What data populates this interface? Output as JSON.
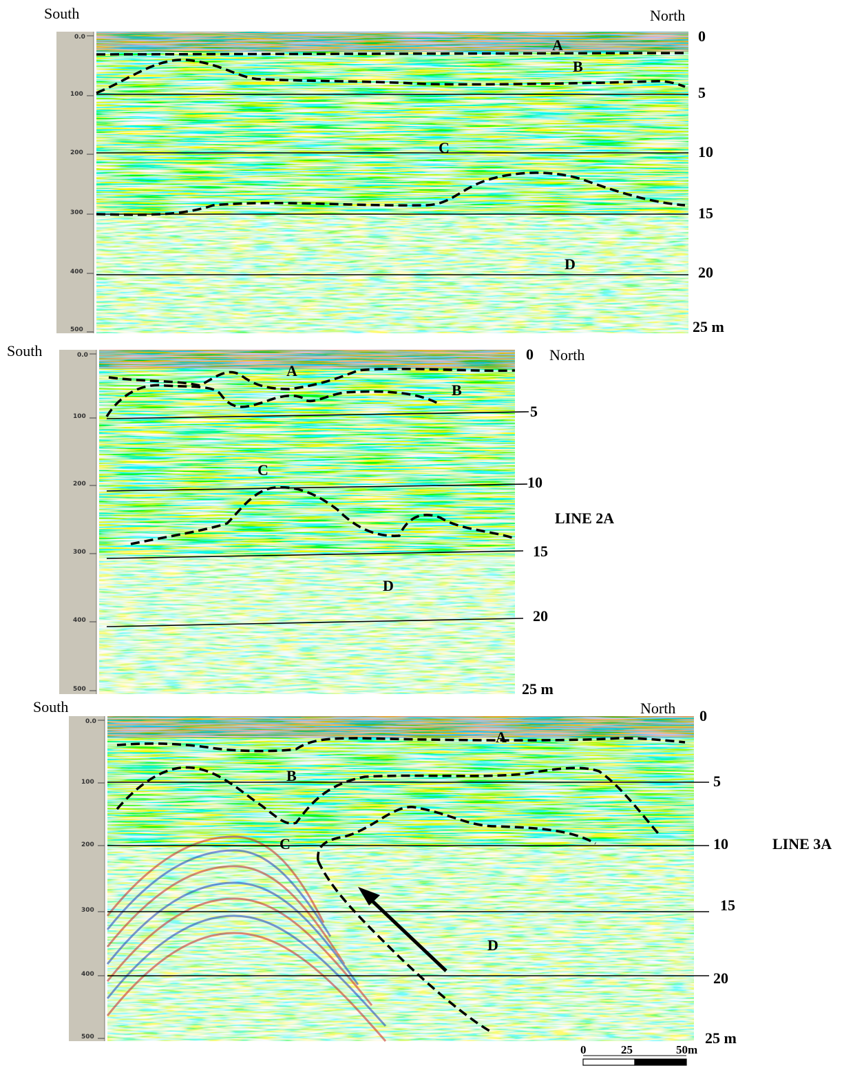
{
  "colors": {
    "positive": "#d11a1a",
    "negative": "#1d2fb8",
    "background": "#ffffff",
    "scale_bar_gray": "#c9c5b8"
  },
  "panels": [
    {
      "id": "panel-1",
      "south_label": "South",
      "north_label": "North",
      "line_label": "",
      "time_ticks": [
        "0.0",
        "100",
        "200",
        "300",
        "400",
        "500"
      ],
      "depth_labels": [
        "0",
        "5",
        "10",
        "15",
        "20",
        "25 m"
      ],
      "unit_labels": [
        "A",
        "B",
        "C",
        "D"
      ]
    },
    {
      "id": "panel-2",
      "south_label": "South",
      "north_label": "North",
      "line_label": "LINE 2A",
      "time_ticks": [
        "0.0",
        "100",
        "200",
        "300",
        "400",
        "500"
      ],
      "depth_labels": [
        "0",
        "5",
        "10",
        "15",
        "20",
        "25 m"
      ],
      "unit_labels": [
        "A",
        "B",
        "C",
        "D"
      ]
    },
    {
      "id": "panel-3",
      "south_label": "South",
      "north_label": "North",
      "line_label": "LINE 3A",
      "time_ticks": [
        "0.0",
        "100",
        "200",
        "300",
        "400",
        "500"
      ],
      "depth_labels": [
        "0",
        "5",
        "10",
        "15",
        "20",
        "25 m"
      ],
      "unit_labels": [
        "A",
        "B",
        "C",
        "D"
      ]
    }
  ],
  "scale_bar": {
    "labels": [
      "0",
      "25",
      "50m"
    ]
  }
}
